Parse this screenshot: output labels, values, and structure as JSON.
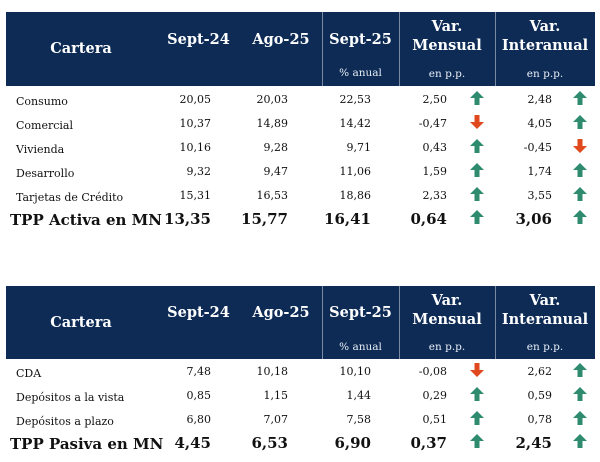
{
  "colors": {
    "header_bg": "#0d2b55",
    "arrow_up": "#2e8b6e",
    "arrow_down": "#e0481e"
  },
  "table_active": {
    "headers": {
      "cartera": "Cartera",
      "sept24": "Sept-24",
      "ago25": "Ago-25",
      "sept25": "Sept-25",
      "var_mensual_l1": "Var.",
      "var_mensual_l2": "Mensual",
      "var_interanual_l1": "Var.",
      "var_interanual_l2": "Interanual",
      "sub_anual": "% anual",
      "sub_pp_mensual": "en p.p.",
      "sub_pp_interanual": "en p.p."
    },
    "rows": [
      {
        "label": "Consumo",
        "sept24": "20,05",
        "ago25": "20,03",
        "sept25": "22,53",
        "var_mensual": "2,50",
        "mensual_dir": "up",
        "var_interanual": "2,48",
        "interanual_dir": "up"
      },
      {
        "label": "Comercial",
        "sept24": "10,37",
        "ago25": "14,89",
        "sept25": "14,42",
        "var_mensual": "-0,47",
        "mensual_dir": "down",
        "var_interanual": "4,05",
        "interanual_dir": "up"
      },
      {
        "label": "Vivienda",
        "sept24": "10,16",
        "ago25": "9,28",
        "sept25": "9,71",
        "var_mensual": "0,43",
        "mensual_dir": "up",
        "var_interanual": "-0,45",
        "interanual_dir": "down"
      },
      {
        "label": "Desarrollo",
        "sept24": "9,32",
        "ago25": "9,47",
        "sept25": "11,06",
        "var_mensual": "1,59",
        "mensual_dir": "up",
        "var_interanual": "1,74",
        "interanual_dir": "up"
      },
      {
        "label": "Tarjetas de Crédito",
        "sept24": "15,31",
        "ago25": "16,53",
        "sept25": "18,86",
        "var_mensual": "2,33",
        "mensual_dir": "up",
        "var_interanual": "3,55",
        "interanual_dir": "up"
      }
    ],
    "total": {
      "label": "TPP Activa en MN",
      "sept24": "13,35",
      "ago25": "15,77",
      "sept25": "16,41",
      "var_mensual": "0,64",
      "mensual_dir": "up",
      "var_interanual": "3,06",
      "interanual_dir": "up"
    }
  },
  "table_passive": {
    "headers": {
      "cartera": "Cartera",
      "sept24": "Sept-24",
      "ago25": "Ago-25",
      "sept25": "Sept-25",
      "var_mensual_l1": "Var.",
      "var_mensual_l2": "Mensual",
      "var_interanual_l1": "Var.",
      "var_interanual_l2": "Interanual",
      "sub_anual": "% anual",
      "sub_pp_mensual": "en p.p.",
      "sub_pp_interanual": "en p.p."
    },
    "rows": [
      {
        "label": "CDA",
        "sept24": "7,48",
        "ago25": "10,18",
        "sept25": "10,10",
        "var_mensual": "-0,08",
        "mensual_dir": "down",
        "var_interanual": "2,62",
        "interanual_dir": "up"
      },
      {
        "label": "Depósitos a la vista",
        "sept24": "0,85",
        "ago25": "1,15",
        "sept25": "1,44",
        "var_mensual": "0,29",
        "mensual_dir": "up",
        "var_interanual": "0,59",
        "interanual_dir": "up"
      },
      {
        "label": "Depósitos a plazo",
        "sept24": "6,80",
        "ago25": "7,07",
        "sept25": "7,58",
        "var_mensual": "0,51",
        "mensual_dir": "up",
        "var_interanual": "0,78",
        "interanual_dir": "up"
      }
    ],
    "total": {
      "label": "TPP Pasiva en MN",
      "sept24": "4,45",
      "ago25": "6,53",
      "sept25": "6,90",
      "var_mensual": "0,37",
      "mensual_dir": "up",
      "var_interanual": "2,45",
      "interanual_dir": "up"
    }
  }
}
